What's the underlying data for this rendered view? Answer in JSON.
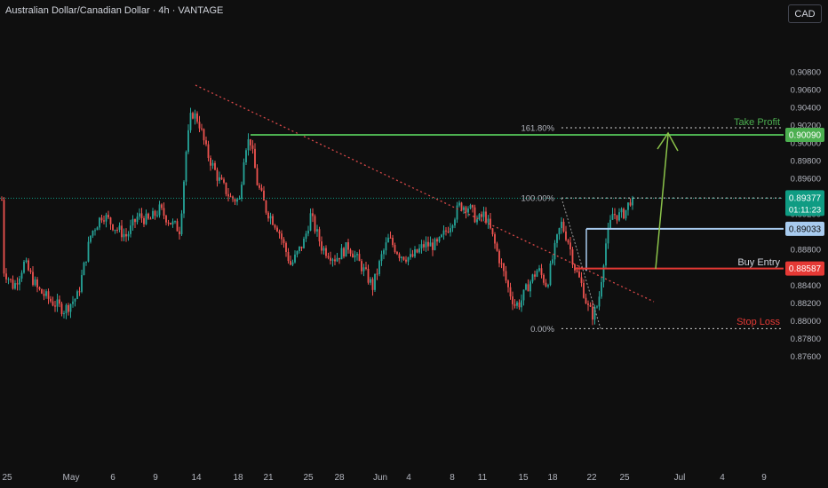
{
  "header": {
    "symbol_title": "Australian Dollar/Canadian Dollar · 4h · VANTAGE",
    "currency_button": "CAD",
    "countdown": "01:11:23"
  },
  "colors": {
    "background": "#0f0f0f",
    "bull": "#26a69a",
    "bear": "#ef5350",
    "take_profit": "#4caf50",
    "buy_entry": "#a8cbef",
    "stop_loss": "#e53935",
    "current_price": "#0f9c83",
    "trendline": "#d84848",
    "arrow": "#8bc34a",
    "axis_text": "#b2b5be"
  },
  "chart_data": {
    "type": "candlestick",
    "timeframe": "4h",
    "y_axis": {
      "range": [
        0.875,
        0.9096
      ],
      "ticks": [
        "0.90800",
        "0.90600",
        "0.90400",
        "0.90200",
        "0.90000",
        "0.89800",
        "0.89600",
        "0.89400",
        "0.89200",
        "0.89000",
        "0.88800",
        "0.88600",
        "0.88400",
        "0.88200",
        "0.88000",
        "0.87800",
        "0.87600"
      ]
    },
    "x_axis": {
      "ticks": [
        "25",
        "May",
        "6",
        "9",
        "14",
        "18",
        "21",
        "25",
        "28",
        "Jun",
        "4",
        "8",
        "11",
        "15",
        "18",
        "22",
        "25",
        "Jul",
        "4",
        "9"
      ]
    },
    "grid": false,
    "levels": [
      {
        "name": "Take Profit",
        "price": 0.9009,
        "price_label": "0.90090"
      },
      {
        "name": "Buy Entry",
        "price": 0.89033,
        "price_label": "0.89033"
      },
      {
        "name": "Stop Loss",
        "price": 0.88587,
        "price_label": "0.88587"
      }
    ],
    "current_price": {
      "price": 0.89377,
      "label": "0.89377"
    },
    "fibonacci": [
      {
        "label": "161.80%",
        "price": 0.9017
      },
      {
        "label": "100.00%",
        "price": 0.8938
      },
      {
        "label": "0.00%",
        "price": 0.8791
      }
    ],
    "key_prices": [
      {
        "date": "May 14",
        "high": 0.9044
      },
      {
        "date": "May 19",
        "high": 0.901
      },
      {
        "date": "Jun 8",
        "high": 0.8948
      },
      {
        "date": "Jun 22",
        "low": 0.8791
      }
    ]
  }
}
